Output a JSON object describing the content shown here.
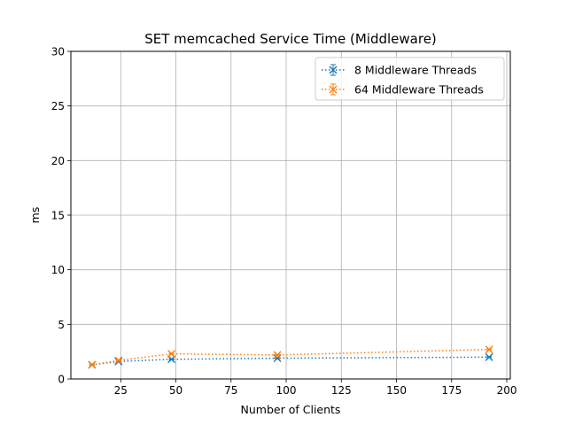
{
  "chart_data": {
    "type": "line",
    "title": "SET memcached Service Time (Middleware)",
    "xlabel": "Number of Clients",
    "ylabel": "ms",
    "xlim": [
      2.4,
      201.6
    ],
    "ylim": [
      0,
      30
    ],
    "xticks": [
      25,
      50,
      75,
      100,
      125,
      150,
      175,
      200
    ],
    "yticks": [
      0,
      5,
      10,
      15,
      20,
      25,
      30
    ],
    "grid": true,
    "legend_position": "top-right",
    "x": [
      12,
      24,
      48,
      96,
      192
    ],
    "series": [
      {
        "name": "8 Middleware Threads",
        "color": "#1f77b4",
        "marker": "x",
        "linestyle": "dotted",
        "values": [
          1.3,
          1.6,
          1.8,
          1.9,
          2.0
        ],
        "errors": [
          0.05,
          0.05,
          0.05,
          0.05,
          0.05
        ]
      },
      {
        "name": "64 Middleware Threads",
        "color": "#ff7f0e",
        "marker": "x",
        "linestyle": "dotted",
        "values": [
          1.3,
          1.7,
          2.3,
          2.2,
          2.7
        ],
        "errors": [
          0.05,
          0.05,
          0.05,
          0.05,
          0.05
        ]
      }
    ]
  }
}
